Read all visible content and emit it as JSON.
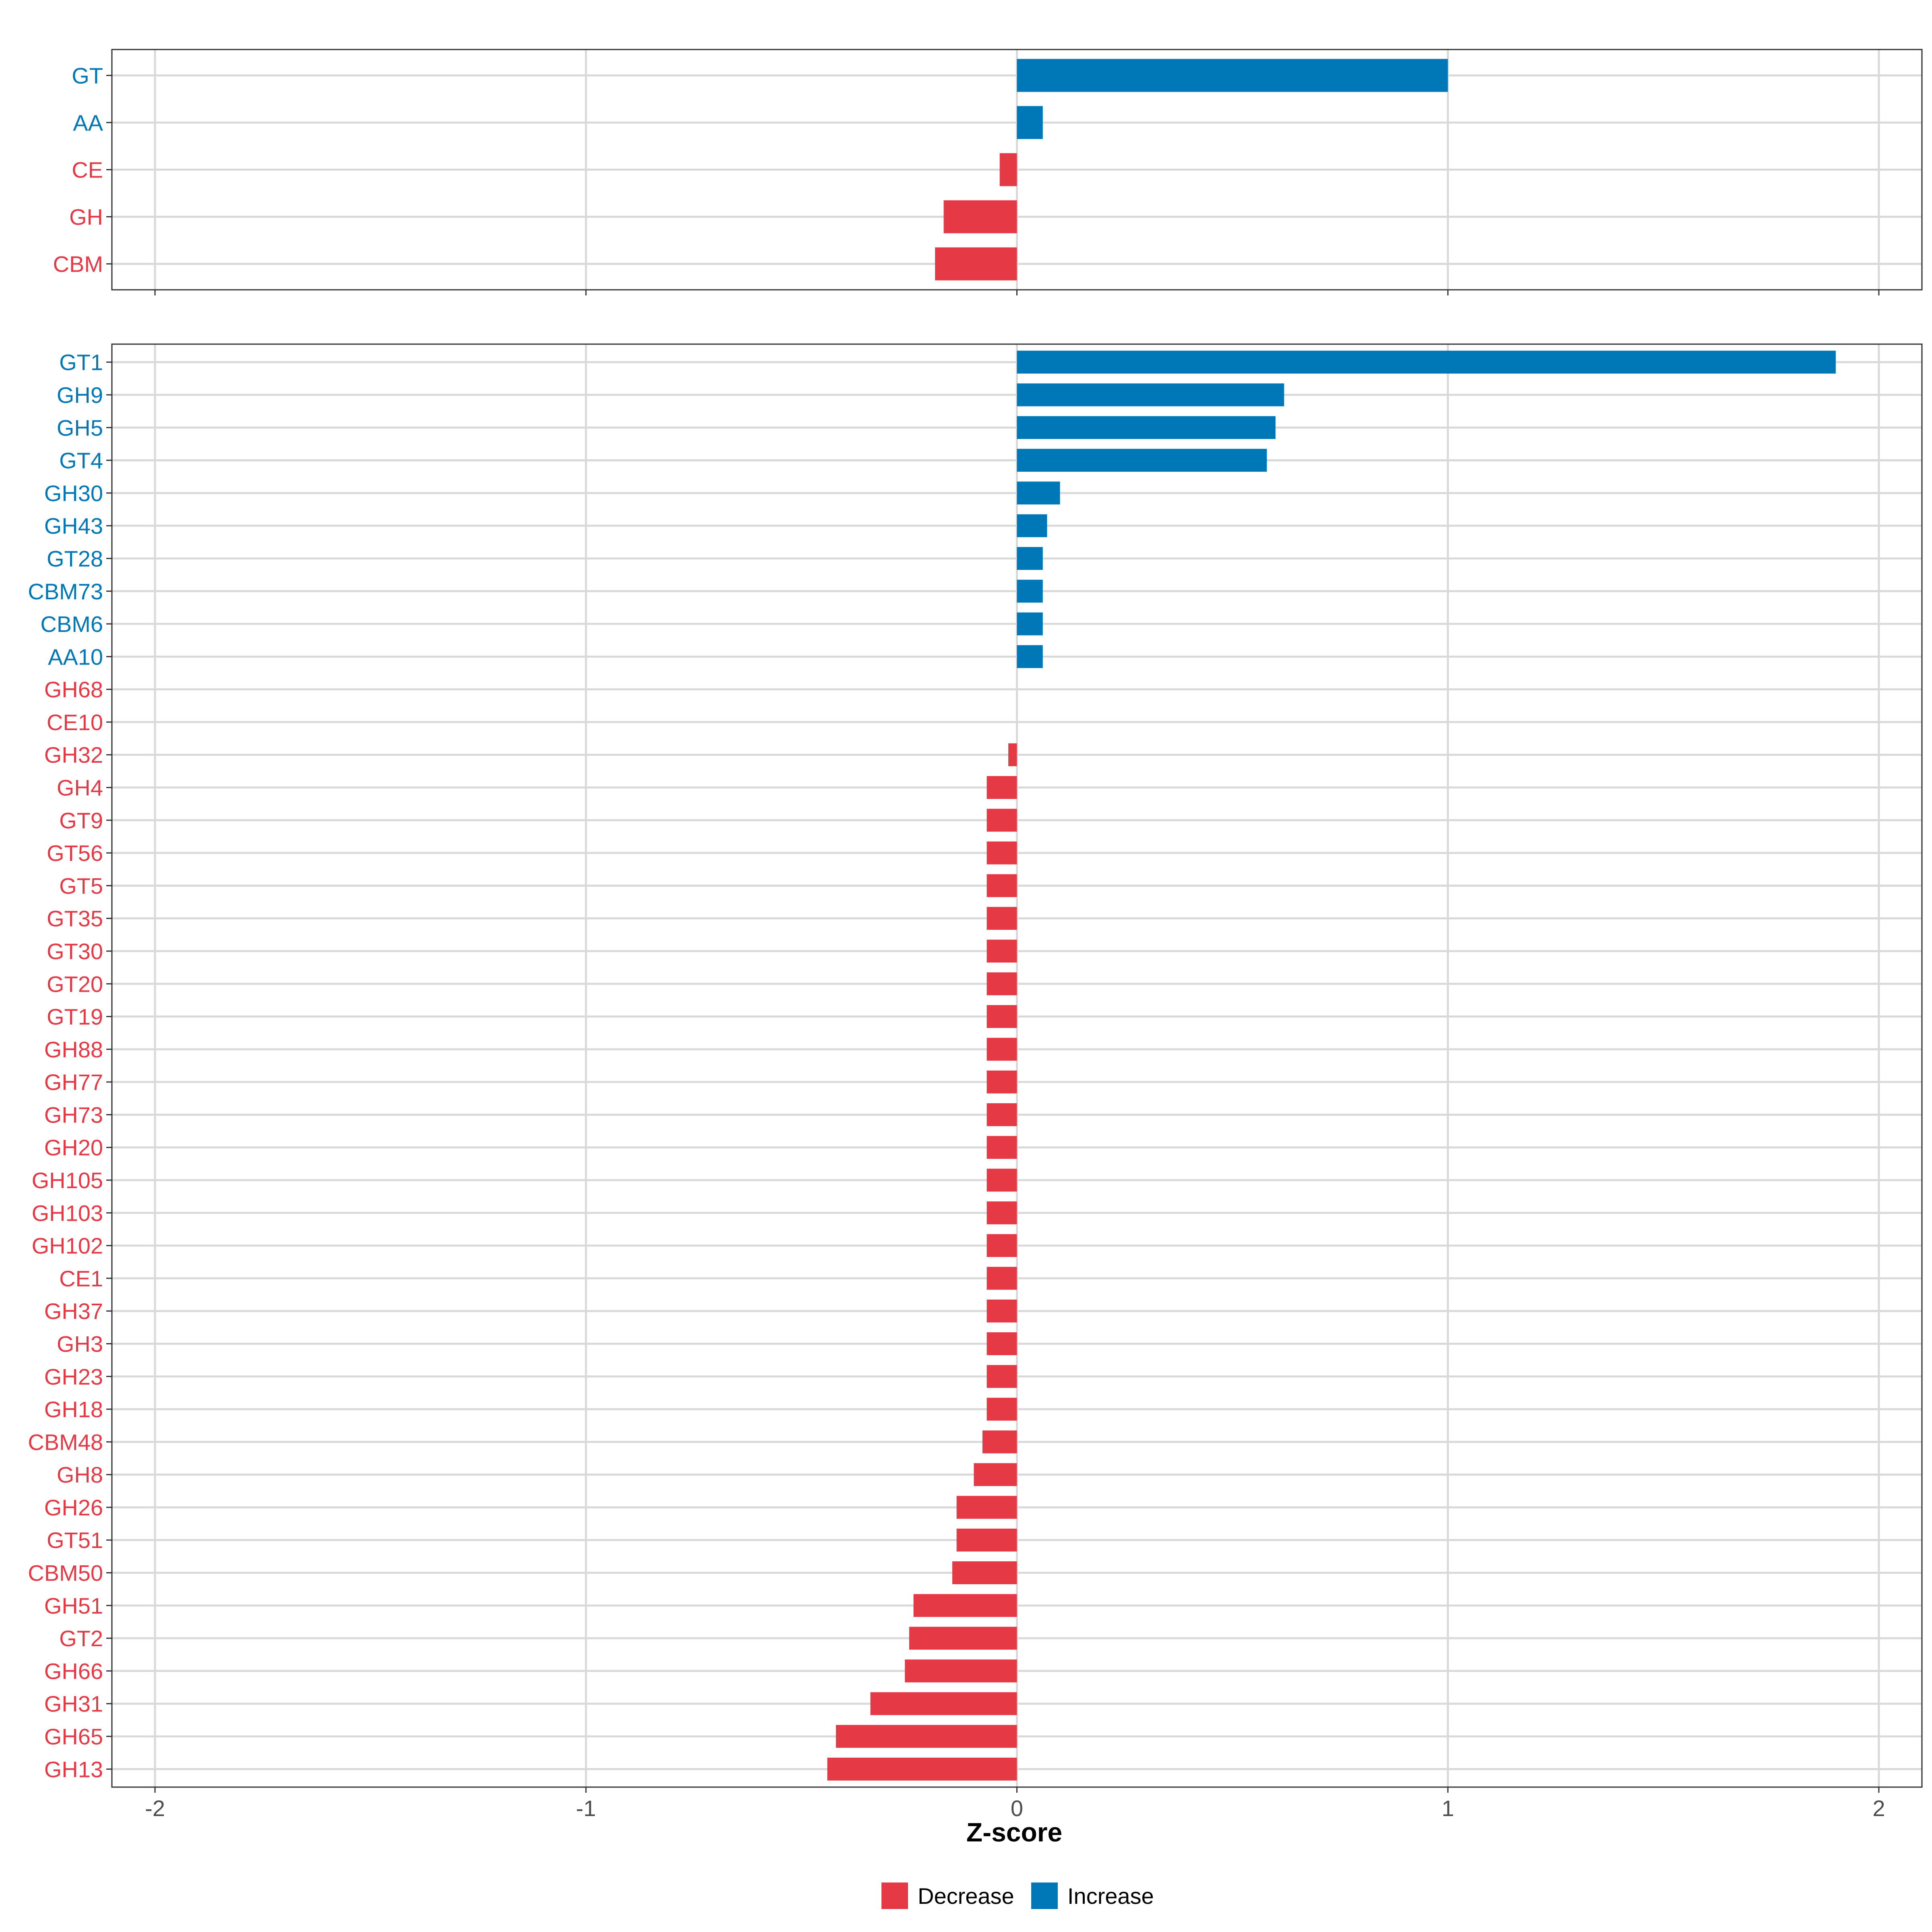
{
  "chart_data": [
    {
      "type": "bar",
      "orientation": "horizontal",
      "panel": "category level",
      "categories": [
        "GT",
        "AA",
        "CE",
        "GH",
        "CBM"
      ],
      "values": [
        1.0,
        0.06,
        -0.04,
        -0.17,
        -0.19
      ],
      "direction": [
        "Increase",
        "Increase",
        "Decrease",
        "Decrease",
        "Decrease"
      ],
      "xlim": [
        -2.1,
        2.1
      ],
      "xticks": [
        "-2",
        "-1",
        "0",
        "1",
        "2"
      ],
      "grid": true
    },
    {
      "type": "bar",
      "orientation": "horizontal",
      "panel": "family level",
      "categories": [
        "GT1",
        "GH9",
        "GH5",
        "GT4",
        "GH30",
        "GH43",
        "GT28",
        "CBM73",
        "CBM6",
        "AA10",
        "GH68",
        "CE10",
        "GH32",
        "GH4",
        "GT9",
        "GT56",
        "GT5",
        "GT35",
        "GT30",
        "GT20",
        "GT19",
        "GH88",
        "GH77",
        "GH73",
        "GH20",
        "GH105",
        "GH103",
        "GH102",
        "CE1",
        "GH37",
        "GH3",
        "GH23",
        "GH18",
        "CBM48",
        "GH8",
        "GH26",
        "GT51",
        "CBM50",
        "GH51",
        "GT2",
        "GH66",
        "GH31",
        "GH65",
        "GH13"
      ],
      "values": [
        1.9,
        0.62,
        0.6,
        0.58,
        0.1,
        0.07,
        0.06,
        0.06,
        0.06,
        0.06,
        0.0,
        0.0,
        -0.02,
        -0.07,
        -0.07,
        -0.07,
        -0.07,
        -0.07,
        -0.07,
        -0.07,
        -0.07,
        -0.07,
        -0.07,
        -0.07,
        -0.07,
        -0.07,
        -0.07,
        -0.07,
        -0.07,
        -0.07,
        -0.07,
        -0.07,
        -0.07,
        -0.08,
        -0.1,
        -0.14,
        -0.14,
        -0.15,
        -0.24,
        -0.25,
        -0.26,
        -0.34,
        -0.42,
        -0.44
      ],
      "direction": [
        "Increase",
        "Increase",
        "Increase",
        "Increase",
        "Increase",
        "Increase",
        "Increase",
        "Increase",
        "Increase",
        "Increase",
        "Decrease",
        "Decrease",
        "Decrease",
        "Decrease",
        "Decrease",
        "Decrease",
        "Decrease",
        "Decrease",
        "Decrease",
        "Decrease",
        "Decrease",
        "Decrease",
        "Decrease",
        "Decrease",
        "Decrease",
        "Decrease",
        "Decrease",
        "Decrease",
        "Decrease",
        "Decrease",
        "Decrease",
        "Decrease",
        "Decrease",
        "Decrease",
        "Decrease",
        "Decrease",
        "Decrease",
        "Decrease",
        "Decrease",
        "Decrease",
        "Decrease",
        "Decrease",
        "Decrease",
        "Decrease"
      ],
      "xlim": [
        -2.1,
        2.1
      ],
      "xticks": [
        "-2",
        "-1",
        "0",
        "1",
        "2"
      ],
      "xlabel": "Z-score",
      "grid": true
    }
  ],
  "legend": {
    "position": "bottom",
    "items": [
      {
        "label": "Decrease",
        "color": "#E63946"
      },
      {
        "label": "Increase",
        "color": "#0077B6"
      }
    ]
  },
  "colors": {
    "Decrease": "#E63946",
    "Increase": "#0077B6",
    "grid": "#D9D9D9",
    "axis": "#333333"
  }
}
